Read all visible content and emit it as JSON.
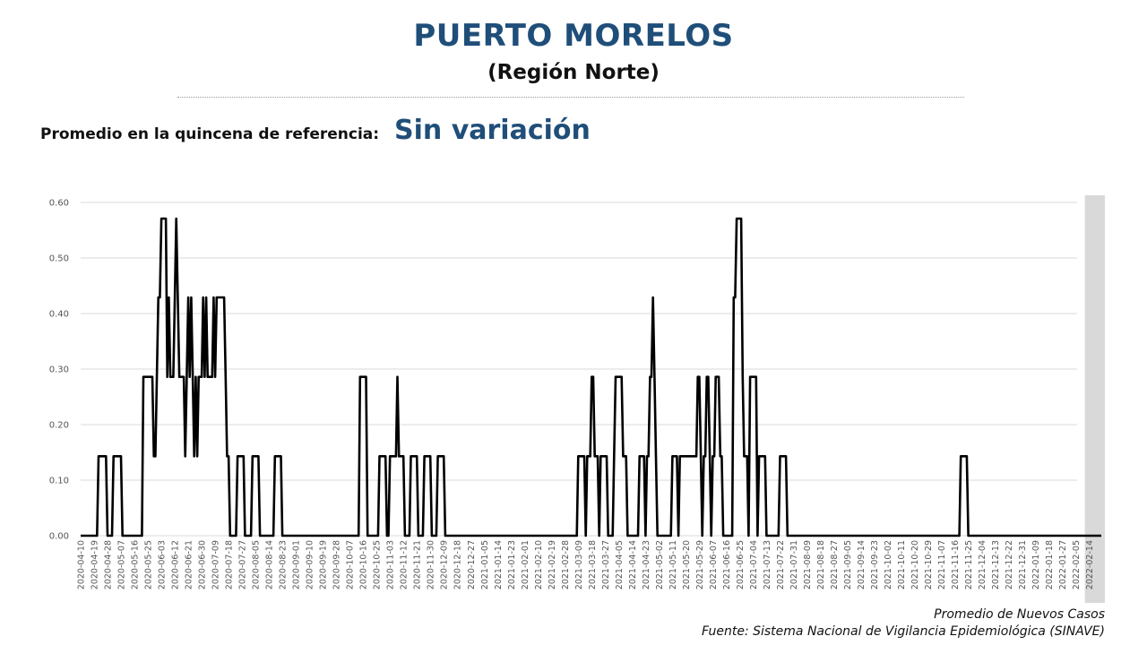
{
  "header": {
    "title": "PUERTO MORELOS",
    "subtitle": "(Región Norte)"
  },
  "reference": {
    "label": "Promedio en la quincena de referencia:",
    "value": "Sin variación"
  },
  "footer": {
    "series_label": "Promedio de Nuevos Casos",
    "source": "Fuente: Sistema Nacional de Vigilancia Epidemiológica (SINAVE)"
  },
  "colors": {
    "title": "#1f4e79",
    "line": "#000000",
    "grid": "#d9d9d9",
    "shaded_band": "#d9d9d9"
  },
  "chart_data": {
    "type": "line",
    "xlabel": "",
    "ylabel": "",
    "ylim": [
      0,
      0.6
    ],
    "y_ticks": [
      "0.00",
      "0.10",
      "0.20",
      "0.30",
      "0.40",
      "0.50",
      "0.60"
    ],
    "grid": true,
    "x_range": [
      "2020-04-10",
      "2022-02-22"
    ],
    "shaded_region": [
      "2022-02-11",
      "2022-02-22"
    ],
    "x_tick_labels": [
      "2020-04-10",
      "2020-04-19",
      "2020-04-28",
      "2020-05-07",
      "2020-05-16",
      "2020-05-25",
      "2020-06-03",
      "2020-06-12",
      "2020-06-21",
      "2020-06-30",
      "2020-07-09",
      "2020-07-18",
      "2020-07-27",
      "2020-08-05",
      "2020-08-14",
      "2020-08-23",
      "2020-09-01",
      "2020-09-10",
      "2020-09-19",
      "2020-09-28",
      "2020-10-07",
      "2020-10-16",
      "2020-10-25",
      "2020-11-03",
      "2020-11-12",
      "2020-11-21",
      "2020-11-30",
      "2020-12-09",
      "2020-12-18",
      "2020-12-27",
      "2021-01-05",
      "2021-01-14",
      "2021-01-23",
      "2021-02-01",
      "2021-02-10",
      "2021-02-19",
      "2021-02-28",
      "2021-03-09",
      "2021-03-18",
      "2021-03-27",
      "2021-04-05",
      "2021-04-14",
      "2021-04-23",
      "2021-05-02",
      "2021-05-11",
      "2021-05-20",
      "2021-05-29",
      "2021-06-07",
      "2021-06-16",
      "2021-06-25",
      "2021-07-04",
      "2021-07-13",
      "2021-07-22",
      "2021-07-31",
      "2021-08-09",
      "2021-08-18",
      "2021-08-27",
      "2021-09-05",
      "2021-09-14",
      "2021-09-23",
      "2021-10-02",
      "2021-10-11",
      "2021-10-20",
      "2021-10-29",
      "2021-11-07",
      "2021-11-16",
      "2021-11-25",
      "2021-12-04",
      "2021-12-13",
      "2021-12-22",
      "2021-12-31",
      "2022-01-09",
      "2022-01-18",
      "2022-01-27",
      "2022-02-05",
      "2022-02-14"
    ],
    "series": [
      {
        "points": [
          [
            "2020-04-10",
            0
          ],
          [
            "2020-04-21",
            0
          ],
          [
            "2020-04-22",
            0.143
          ],
          [
            "2020-04-27",
            0.143
          ],
          [
            "2020-04-28",
            0
          ],
          [
            "2020-05-01",
            0
          ],
          [
            "2020-05-02",
            0.143
          ],
          [
            "2020-05-07",
            0.143
          ],
          [
            "2020-05-08",
            0
          ],
          [
            "2020-05-21",
            0
          ],
          [
            "2020-05-22",
            0.286
          ],
          [
            "2020-05-28",
            0.286
          ],
          [
            "2020-05-29",
            0.143
          ],
          [
            "2020-05-30",
            0.143
          ],
          [
            "2020-06-01",
            0.429
          ],
          [
            "2020-06-02",
            0.429
          ],
          [
            "2020-06-03",
            0.571
          ],
          [
            "2020-06-06",
            0.571
          ],
          [
            "2020-06-07",
            0.286
          ],
          [
            "2020-06-08",
            0.429
          ],
          [
            "2020-06-09",
            0.286
          ],
          [
            "2020-06-11",
            0.286
          ],
          [
            "2020-06-12",
            0.429
          ],
          [
            "2020-06-13",
            0.571
          ],
          [
            "2020-06-14",
            0.429
          ],
          [
            "2020-06-15",
            0.286
          ],
          [
            "2020-06-18",
            0.286
          ],
          [
            "2020-06-19",
            0.143
          ],
          [
            "2020-06-20",
            0.286
          ],
          [
            "2020-06-21",
            0.429
          ],
          [
            "2020-06-22",
            0.286
          ],
          [
            "2020-06-23",
            0.429
          ],
          [
            "2020-06-24",
            0.286
          ],
          [
            "2020-06-25",
            0.143
          ],
          [
            "2020-06-26",
            0.286
          ],
          [
            "2020-06-27",
            0.143
          ],
          [
            "2020-06-28",
            0.286
          ],
          [
            "2020-06-30",
            0.286
          ],
          [
            "2020-07-01",
            0.429
          ],
          [
            "2020-07-02",
            0.286
          ],
          [
            "2020-07-03",
            0.429
          ],
          [
            "2020-07-04",
            0.286
          ],
          [
            "2020-07-07",
            0.286
          ],
          [
            "2020-07-08",
            0.429
          ],
          [
            "2020-07-09",
            0.286
          ],
          [
            "2020-07-10",
            0.429
          ],
          [
            "2020-07-15",
            0.429
          ],
          [
            "2020-07-16",
            0.286
          ],
          [
            "2020-07-17",
            0.143
          ],
          [
            "2020-07-18",
            0.143
          ],
          [
            "2020-07-19",
            0
          ],
          [
            "2020-07-23",
            0
          ],
          [
            "2020-07-24",
            0.143
          ],
          [
            "2020-07-28",
            0.143
          ],
          [
            "2020-07-29",
            0
          ],
          [
            "2020-08-02",
            0
          ],
          [
            "2020-08-03",
            0.143
          ],
          [
            "2020-08-07",
            0.143
          ],
          [
            "2020-08-08",
            0
          ],
          [
            "2020-08-17",
            0
          ],
          [
            "2020-08-18",
            0.143
          ],
          [
            "2020-08-22",
            0.143
          ],
          [
            "2020-08-23",
            0
          ],
          [
            "2020-10-13",
            0
          ],
          [
            "2020-10-14",
            0.286
          ],
          [
            "2020-10-18",
            0.286
          ],
          [
            "2020-10-19",
            0
          ],
          [
            "2020-10-26",
            0
          ],
          [
            "2020-10-27",
            0.143
          ],
          [
            "2020-10-31",
            0.143
          ],
          [
            "2020-11-01",
            0
          ],
          [
            "2020-11-02",
            0
          ],
          [
            "2020-11-03",
            0.143
          ],
          [
            "2020-11-07",
            0.143
          ],
          [
            "2020-11-08",
            0.286
          ],
          [
            "2020-11-09",
            0.143
          ],
          [
            "2020-11-12",
            0.143
          ],
          [
            "2020-11-13",
            0
          ],
          [
            "2020-11-16",
            0
          ],
          [
            "2020-11-17",
            0.143
          ],
          [
            "2020-11-21",
            0.143
          ],
          [
            "2020-11-22",
            0
          ],
          [
            "2020-11-25",
            0
          ],
          [
            "2020-11-26",
            0.143
          ],
          [
            "2020-11-30",
            0.143
          ],
          [
            "2020-12-01",
            0
          ],
          [
            "2020-12-04",
            0
          ],
          [
            "2020-12-05",
            0.143
          ],
          [
            "2020-12-09",
            0.143
          ],
          [
            "2020-12-10",
            0
          ],
          [
            "2021-03-08",
            0
          ],
          [
            "2021-03-09",
            0.143
          ],
          [
            "2021-03-13",
            0.143
          ],
          [
            "2021-03-14",
            0
          ],
          [
            "2021-03-15",
            0.143
          ],
          [
            "2021-03-17",
            0.143
          ],
          [
            "2021-03-18",
            0.286
          ],
          [
            "2021-03-19",
            0.286
          ],
          [
            "2021-03-20",
            0.143
          ],
          [
            "2021-03-22",
            0.143
          ],
          [
            "2021-03-23",
            0
          ],
          [
            "2021-03-24",
            0.143
          ],
          [
            "2021-03-28",
            0.143
          ],
          [
            "2021-03-29",
            0
          ],
          [
            "2021-04-01",
            0
          ],
          [
            "2021-04-02",
            0.143
          ],
          [
            "2021-04-03",
            0.286
          ],
          [
            "2021-04-07",
            0.286
          ],
          [
            "2021-04-08",
            0.143
          ],
          [
            "2021-04-10",
            0.143
          ],
          [
            "2021-04-11",
            0
          ],
          [
            "2021-04-18",
            0
          ],
          [
            "2021-04-19",
            0.143
          ],
          [
            "2021-04-22",
            0.143
          ],
          [
            "2021-04-23",
            0
          ],
          [
            "2021-04-24",
            0.143
          ],
          [
            "2021-04-25",
            0.143
          ],
          [
            "2021-04-26",
            0.286
          ],
          [
            "2021-04-27",
            0.286
          ],
          [
            "2021-04-28",
            0.429
          ],
          [
            "2021-04-29",
            0.286
          ],
          [
            "2021-04-30",
            0.143
          ],
          [
            "2021-05-01",
            0
          ],
          [
            "2021-05-10",
            0
          ],
          [
            "2021-05-11",
            0.143
          ],
          [
            "2021-05-14",
            0.143
          ],
          [
            "2021-05-15",
            0
          ],
          [
            "2021-05-16",
            0.143
          ],
          [
            "2021-05-27",
            0.143
          ],
          [
            "2021-05-28",
            0.286
          ],
          [
            "2021-05-29",
            0.286
          ],
          [
            "2021-05-30",
            0.143
          ],
          [
            "2021-05-31",
            0
          ],
          [
            "2021-06-01",
            0.143
          ],
          [
            "2021-06-02",
            0.143
          ],
          [
            "2021-06-03",
            0.286
          ],
          [
            "2021-06-04",
            0.286
          ],
          [
            "2021-06-05",
            0.143
          ],
          [
            "2021-06-06",
            0
          ],
          [
            "2021-06-07",
            0.143
          ],
          [
            "2021-06-08",
            0.143
          ],
          [
            "2021-06-09",
            0.286
          ],
          [
            "2021-06-11",
            0.286
          ],
          [
            "2021-06-12",
            0.143
          ],
          [
            "2021-06-13",
            0.143
          ],
          [
            "2021-06-14",
            0
          ],
          [
            "2021-06-20",
            0
          ],
          [
            "2021-06-21",
            0.429
          ],
          [
            "2021-06-22",
            0.429
          ],
          [
            "2021-06-23",
            0.571
          ],
          [
            "2021-06-26",
            0.571
          ],
          [
            "2021-06-27",
            0.286
          ],
          [
            "2021-06-28",
            0.143
          ],
          [
            "2021-06-30",
            0.143
          ],
          [
            "2021-07-01",
            0
          ],
          [
            "2021-07-02",
            0.286
          ],
          [
            "2021-07-06",
            0.286
          ],
          [
            "2021-07-07",
            0
          ],
          [
            "2021-07-08",
            0.143
          ],
          [
            "2021-07-12",
            0.143
          ],
          [
            "2021-07-13",
            0
          ],
          [
            "2021-07-21",
            0
          ],
          [
            "2021-07-22",
            0.143
          ],
          [
            "2021-07-26",
            0.143
          ],
          [
            "2021-07-27",
            0
          ],
          [
            "2021-11-19",
            0
          ],
          [
            "2021-11-20",
            0.143
          ],
          [
            "2021-11-24",
            0.143
          ],
          [
            "2021-11-25",
            0
          ],
          [
            "2022-02-22",
            0
          ]
        ]
      }
    ]
  }
}
